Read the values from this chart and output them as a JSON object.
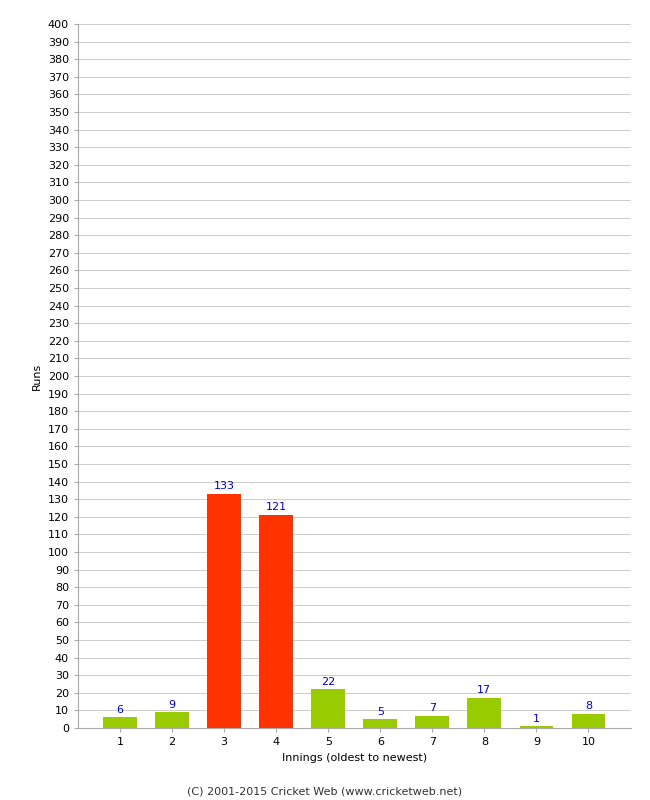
{
  "categories": [
    "1",
    "2",
    "3",
    "4",
    "5",
    "6",
    "7",
    "8",
    "9",
    "10"
  ],
  "values": [
    6,
    9,
    133,
    121,
    22,
    5,
    7,
    17,
    1,
    8
  ],
  "bar_colors": [
    "#99cc00",
    "#99cc00",
    "#ff3300",
    "#ff3300",
    "#99cc00",
    "#99cc00",
    "#99cc00",
    "#99cc00",
    "#99cc00",
    "#99cc00"
  ],
  "xlabel": "Innings (oldest to newest)",
  "ylabel": "Runs",
  "ylim": [
    0,
    400
  ],
  "yticks": [
    0,
    10,
    20,
    30,
    40,
    50,
    60,
    70,
    80,
    90,
    100,
    110,
    120,
    130,
    140,
    150,
    160,
    170,
    180,
    190,
    200,
    210,
    220,
    230,
    240,
    250,
    260,
    270,
    280,
    290,
    300,
    310,
    320,
    330,
    340,
    350,
    360,
    370,
    380,
    390,
    400
  ],
  "label_color": "#0000cc",
  "grid_color": "#cccccc",
  "background_color": "#ffffff",
  "footer": "(C) 2001-2015 Cricket Web (www.cricketweb.net)",
  "bar_value_fontsize": 8,
  "axis_label_fontsize": 8,
  "tick_fontsize": 8,
  "footer_fontsize": 8,
  "bar_width": 0.65
}
